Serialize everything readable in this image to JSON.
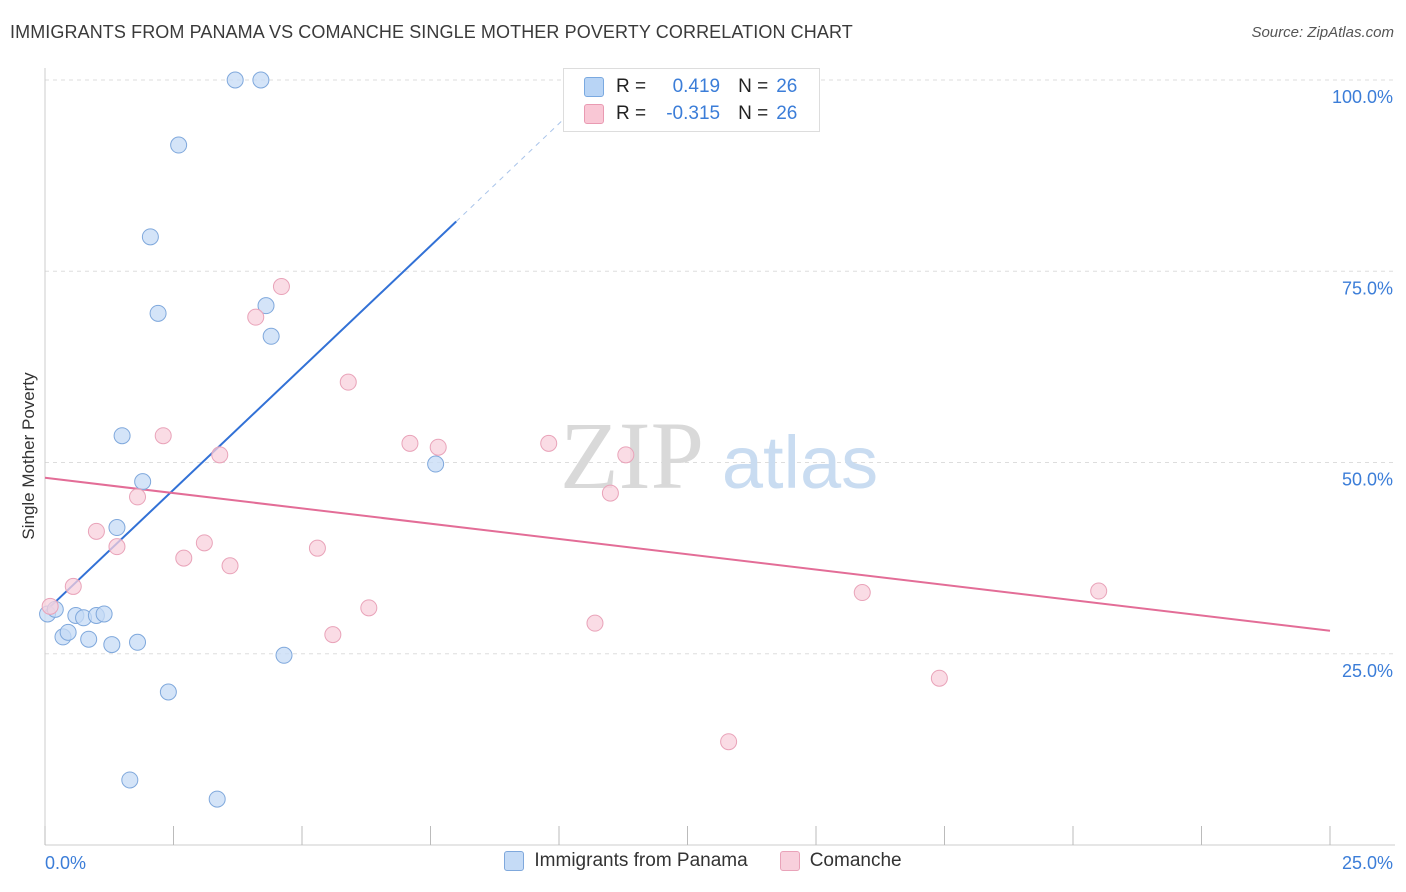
{
  "title": "IMMIGRANTS FROM PANAMA VS COMANCHE SINGLE MOTHER POVERTY CORRELATION CHART",
  "source": "Source: ZipAtlas.com",
  "watermark": {
    "zip": "ZIP",
    "atlas": "atlas"
  },
  "legend": {
    "r_label": "R =",
    "n_label": "N =",
    "rows": [
      {
        "r": "0.419",
        "n": "26",
        "fill": "#b8d4f5",
        "stroke": "#7aa9e0"
      },
      {
        "r": "-0.315",
        "n": "26",
        "fill": "#f9c7d5",
        "stroke": "#e99ab2"
      }
    ]
  },
  "colors": {
    "blue_fill": "#c5dbf6",
    "blue_stroke": "#7fa8dc",
    "blue_line": "#3271d6",
    "pink_fill": "#f8d0dc",
    "pink_stroke": "#e9a3b9",
    "pink_line": "#e36d97",
    "axis_text": "#3b7dd8",
    "grid": "#dddddd"
  },
  "chart_data": {
    "type": "scatter",
    "title": "IMMIGRANTS FROM PANAMA VS COMANCHE SINGLE MOTHER POVERTY CORRELATION CHART",
    "xlabel": "",
    "ylabel": "Single Mother Poverty",
    "xlim": [
      0,
      25
    ],
    "ylim": [
      0,
      100
    ],
    "x_ticks_labeled": [
      "0.0%",
      "25.0%"
    ],
    "y_tick_labels": [
      "25.0%",
      "50.0%",
      "75.0%",
      "100.0%"
    ],
    "y_tick_values": [
      25,
      50,
      75,
      100
    ],
    "grid": true,
    "series": [
      {
        "name": "Immigrants from Panama",
        "points": [
          [
            0.05,
            30.2
          ],
          [
            0.2,
            30.8
          ],
          [
            0.35,
            27.2
          ],
          [
            0.45,
            27.8
          ],
          [
            0.6,
            30.0
          ],
          [
            0.75,
            29.7
          ],
          [
            0.85,
            26.9
          ],
          [
            1.0,
            30.0
          ],
          [
            1.15,
            30.2
          ],
          [
            1.3,
            26.2
          ],
          [
            1.4,
            41.5
          ],
          [
            1.5,
            53.5
          ],
          [
            1.65,
            8.5
          ],
          [
            1.8,
            26.5
          ],
          [
            1.9,
            47.5
          ],
          [
            2.05,
            79.5
          ],
          [
            2.2,
            69.5
          ],
          [
            2.4,
            20.0
          ],
          [
            2.6,
            91.5
          ],
          [
            3.35,
            6.0
          ],
          [
            3.7,
            100.0
          ],
          [
            4.2,
            100.0
          ],
          [
            4.3,
            70.5
          ],
          [
            4.4,
            66.5
          ],
          [
            4.65,
            24.8
          ],
          [
            7.6,
            49.8
          ]
        ]
      },
      {
        "name": "Comanche",
        "points": [
          [
            0.1,
            31.2
          ],
          [
            0.55,
            33.8
          ],
          [
            1.0,
            41.0
          ],
          [
            1.4,
            39.0
          ],
          [
            1.8,
            45.5
          ],
          [
            2.3,
            53.5
          ],
          [
            2.7,
            37.5
          ],
          [
            3.1,
            39.5
          ],
          [
            3.4,
            51.0
          ],
          [
            3.6,
            36.5
          ],
          [
            4.1,
            69.0
          ],
          [
            4.6,
            73.0
          ],
          [
            5.3,
            38.8
          ],
          [
            5.6,
            27.5
          ],
          [
            5.9,
            60.5
          ],
          [
            6.3,
            31.0
          ],
          [
            7.1,
            52.5
          ],
          [
            7.65,
            52.0
          ],
          [
            9.8,
            52.5
          ],
          [
            10.7,
            29.0
          ],
          [
            11.0,
            46.0
          ],
          [
            11.3,
            51.0
          ],
          [
            13.3,
            13.5
          ],
          [
            15.9,
            33.0
          ],
          [
            17.4,
            21.8
          ],
          [
            20.5,
            33.2
          ]
        ]
      }
    ],
    "trendlines": [
      {
        "series": "Immigrants from Panama",
        "x": [
          0,
          8
        ],
        "y": [
          30.5,
          81.5
        ],
        "dashed_to": [
          10.5,
          97.5
        ]
      },
      {
        "series": "Comanche",
        "x": [
          0,
          25
        ],
        "y": [
          48.0,
          28.0
        ]
      }
    ]
  },
  "bottom_legend": [
    {
      "label": "Immigrants from Panama",
      "fill": "#c5dbf6",
      "stroke": "#7fa8dc"
    },
    {
      "label": "Comanche",
      "fill": "#f8d0dc",
      "stroke": "#e9a3b9"
    }
  ]
}
